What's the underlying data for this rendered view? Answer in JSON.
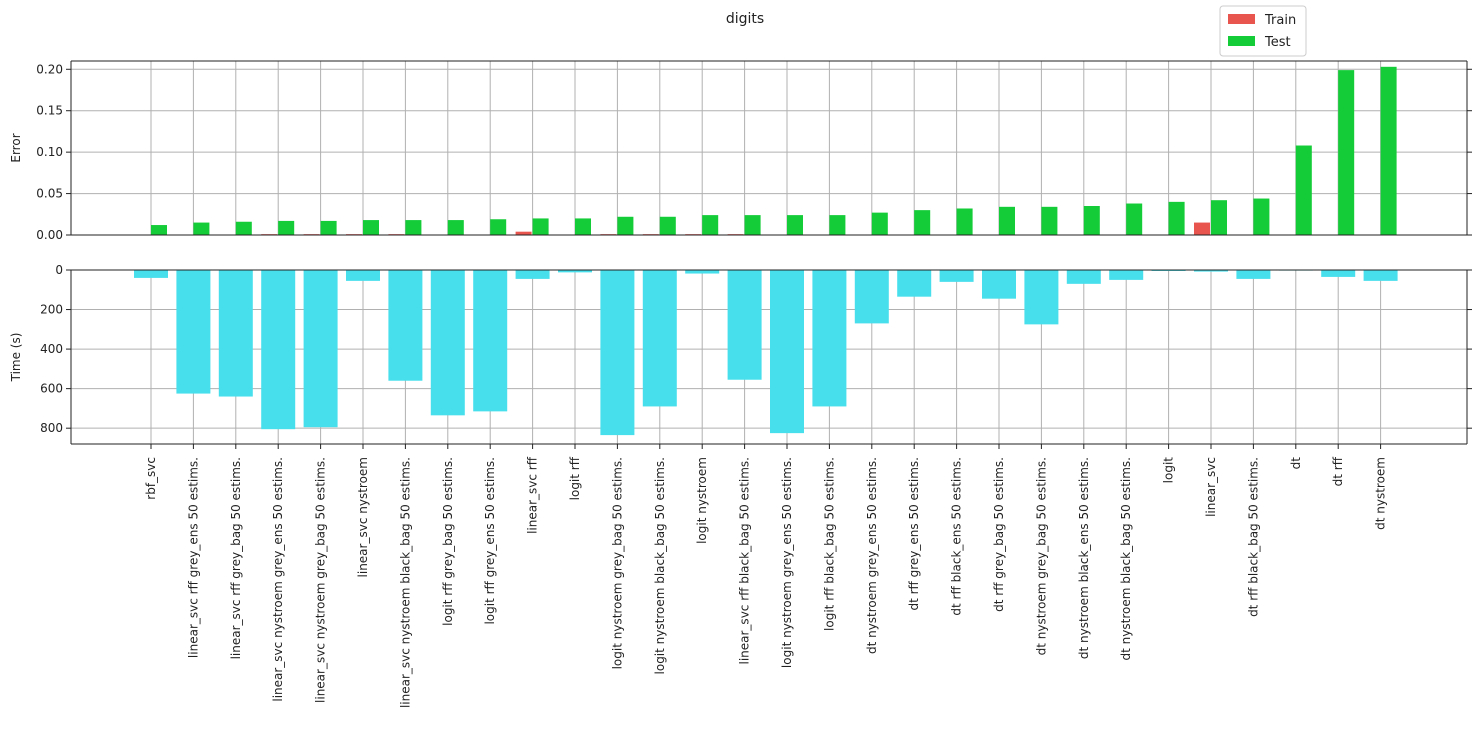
{
  "chart_data": {
    "title": "digits",
    "type": "bar",
    "categories": [
      "rbf_svc",
      "linear_svc rff grey_ens 50 estims.",
      "linear_svc rff grey_bag 50 estims.",
      "linear_svc nystroem grey_ens 50 estims.",
      "linear_svc nystroem grey_bag 50 estims.",
      "linear_svc nystroem",
      "linear_svc nystroem black_bag 50 estims.",
      "logit rff grey_bag 50 estims.",
      "logit rff grey_ens 50 estims.",
      "linear_svc rff",
      "logit rff",
      "logit nystroem grey_bag 50 estims.",
      "logit nystroem black_bag 50 estims.",
      "logit nystroem",
      "linear_svc rff black_bag 50 estims.",
      "logit nystroem grey_ens 50 estims.",
      "logit rff black_bag 50 estims.",
      "dt nystroem grey_ens 50 estims.",
      "dt rff grey_ens 50 estims.",
      "dt rff black_ens 50 estims.",
      "dt rff grey_bag 50 estims.",
      "dt nystroem grey_bag 50 estims.",
      "dt nystroem black_ens 50 estims.",
      "dt nystroem black_bag 50 estims.",
      "logit",
      "linear_svc",
      "dt rff black_bag 50 estims.",
      "dt",
      "dt rff",
      "dt nystroem"
    ],
    "legend": {
      "placement": "top-right",
      "entries": [
        "Train",
        "Test"
      ]
    },
    "grid": true,
    "colors": {
      "train": "#e8554e",
      "test": "#13cc37",
      "time": "#48dfec",
      "grid": "#b0b0b0"
    },
    "subplots": [
      {
        "ylabel": "Error",
        "ylim": [
          0,
          0.21
        ],
        "yticks": [
          "0.00",
          "0.05",
          "0.10",
          "0.15",
          "0.20"
        ],
        "series": [
          {
            "name": "Train",
            "values": [
              0,
              0,
              0,
              0.001,
              0.001,
              0.001,
              0.001,
              0,
              0,
              0.004,
              0,
              0.001,
              0.001,
              0.001,
              0.001,
              0,
              0,
              0,
              0,
              0,
              0,
              0,
              0,
              0,
              0,
              0.015,
              0,
              0,
              0,
              0
            ]
          },
          {
            "name": "Test",
            "values": [
              0.012,
              0.015,
              0.016,
              0.017,
              0.017,
              0.018,
              0.018,
              0.018,
              0.019,
              0.02,
              0.02,
              0.022,
              0.022,
              0.024,
              0.024,
              0.024,
              0.024,
              0.027,
              0.03,
              0.032,
              0.034,
              0.034,
              0.035,
              0.038,
              0.04,
              0.042,
              0.044,
              0.108,
              0.199,
              0.203
            ]
          }
        ]
      },
      {
        "ylabel": "Time (s)",
        "ylim": [
          0,
          880
        ],
        "inverted": true,
        "yticks": [
          "0",
          "200",
          "400",
          "600",
          "800"
        ],
        "series": [
          {
            "values": [
              40,
              625,
              640,
              805,
              795,
              55,
              560,
              735,
              715,
              45,
              12,
              835,
              690,
              18,
              555,
              825,
              690,
              270,
              135,
              60,
              145,
              275,
              70,
              50,
              5,
              8,
              45,
              3,
              35,
              55
            ]
          }
        ]
      }
    ]
  }
}
